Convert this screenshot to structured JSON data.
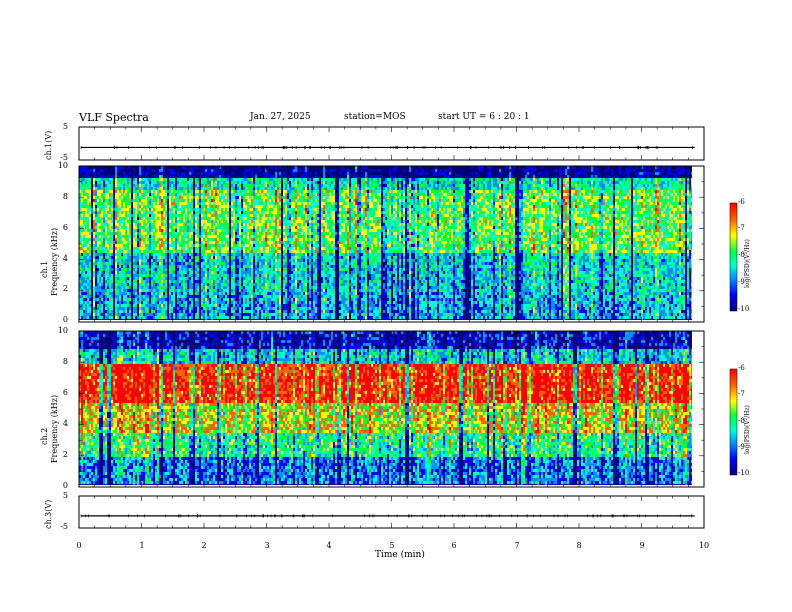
{
  "header": {
    "title": "VLF Spectra",
    "date": "Jan. 27, 2025",
    "station": "station=MOS",
    "start": "start UT =  6 : 20 : 1"
  },
  "chart_data": [
    {
      "type": "line",
      "name": "ch1-voltage",
      "ylabel": "ch.1(V)",
      "ylim": [
        -5,
        5
      ],
      "y_ticks": [
        "5",
        "-5"
      ],
      "level": -1.2
    },
    {
      "type": "heatmap",
      "name": "ch1-spectrogram",
      "ylabel": "ch.1\nFrequency (kHz)",
      "ylabel_top": "ch.1",
      "ylabel_bottom": "Frequency (kHz)",
      "ylim": [
        0,
        10
      ],
      "y_ticks": [
        "0",
        "2",
        "4",
        "6",
        "8",
        "10"
      ],
      "colorbar": {
        "label": "log(PSD)(V²/Hz)",
        "range": [
          -10,
          -6
        ],
        "ticks": [
          "-6",
          "-7",
          "-8",
          "-9",
          "-10"
        ]
      }
    },
    {
      "type": "heatmap",
      "name": "ch2-spectrogram",
      "ylabel_top": "ch.2",
      "ylabel_bottom": "Frequency (kHz)",
      "ylim": [
        0,
        10
      ],
      "y_ticks": [
        "0",
        "2",
        "4",
        "6",
        "8",
        "10"
      ],
      "colorbar": {
        "label": "log(PSD)(V²/Hz)",
        "range": [
          -10,
          -6
        ],
        "ticks": [
          "-6",
          "-7",
          "-8",
          "-9",
          "-10"
        ]
      }
    },
    {
      "type": "line",
      "name": "ch3-voltage",
      "ylabel": "ch.3(V)",
      "ylim": [
        -5,
        5
      ],
      "y_ticks": [
        "5",
        "-5"
      ],
      "level": -1.2
    }
  ],
  "x_axis": {
    "label": "Time (min)",
    "range": [
      0,
      10
    ],
    "ticks": [
      "0",
      "1",
      "2",
      "3",
      "4",
      "5",
      "6",
      "7",
      "8",
      "9",
      "10"
    ],
    "data_end": 9.85
  },
  "colors": {
    "scale": [
      "#00007a",
      "#0000ff",
      "#0090ff",
      "#00ffd0",
      "#00ff40",
      "#ffff00",
      "#ff6000",
      "#ff0000"
    ]
  }
}
